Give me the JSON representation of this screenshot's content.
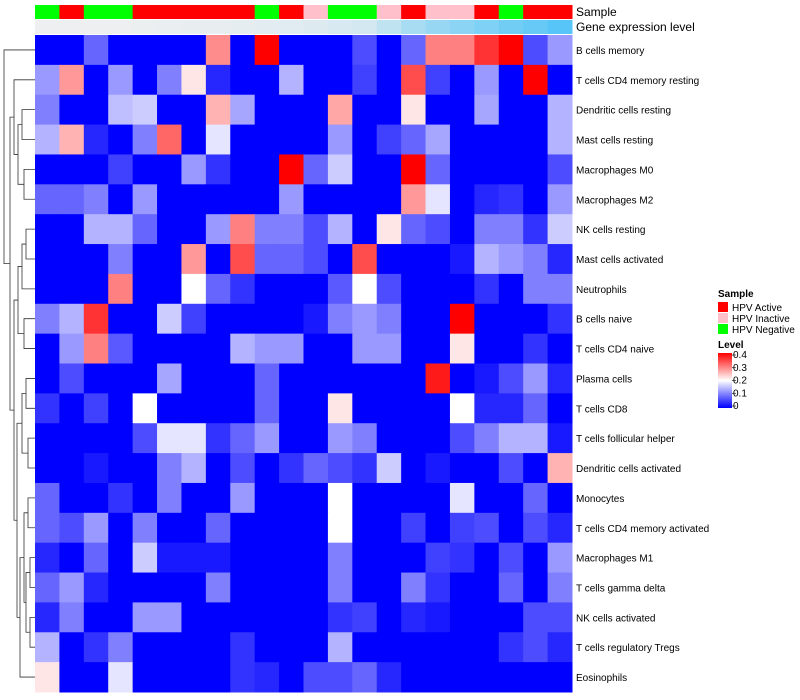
{
  "chart_data": {
    "type": "heatmap",
    "annotation_labels": [
      "Sample",
      "Gene expression level"
    ],
    "sample_groups": [
      "negative",
      "active",
      "negative",
      "negative",
      "active",
      "active",
      "active",
      "active",
      "active",
      "negative",
      "active",
      "inactive",
      "negative",
      "negative",
      "inactive",
      "active",
      "inactive",
      "inactive",
      "active",
      "negative",
      "active",
      "active"
    ],
    "expression_annotation": [
      0.02,
      0.02,
      0.02,
      0.02,
      0.03,
      0.04,
      0.05,
      0.05,
      0.06,
      0.08,
      0.1,
      0.12,
      0.15,
      0.18,
      0.3,
      0.45,
      0.55,
      0.62,
      0.7,
      0.78,
      0.85,
      0.95
    ],
    "rows": [
      "B cells memory",
      "T cells CD4 memory resting",
      "Dendritic cells resting",
      "Mast cells resting",
      "Macrophages M0",
      "Macrophages M2",
      "NK cells resting",
      "Mast cells activated",
      "Neutrophils",
      "B cells naive",
      "T cells CD4 naive",
      "Plasma cells",
      "T cells CD8",
      "T cells follicular helper",
      "Dendritic cells activated",
      "Monocytes",
      "T cells CD4 memory activated",
      "Macrophages M1",
      "T cells gamma delta",
      "NK cells activated",
      "T cells regulatory  Tregs",
      "Eosinophils"
    ],
    "values": [
      [
        0.0,
        0.0,
        0.08,
        0.0,
        0.0,
        0.0,
        0.0,
        0.29,
        0.0,
        0.4,
        0.0,
        0.0,
        0.0,
        0.06,
        0.0,
        0.08,
        0.3,
        0.3,
        0.36,
        0.4,
        0.06,
        0.12
      ],
      [
        0.12,
        0.28,
        0.0,
        0.12,
        0.0,
        0.1,
        0.22,
        0.03,
        0.0,
        0.0,
        0.14,
        0.0,
        0.0,
        0.05,
        0.0,
        0.34,
        0.05,
        0.0,
        0.12,
        0.0,
        0.4,
        0.0
      ],
      [
        0.1,
        0.0,
        0.0,
        0.15,
        0.16,
        0.0,
        0.0,
        0.26,
        0.13,
        0.0,
        0.0,
        0.0,
        0.27,
        0.0,
        0.0,
        0.22,
        0.0,
        0.0,
        0.13,
        0.0,
        0.0,
        0.14
      ],
      [
        0.14,
        0.26,
        0.03,
        0.0,
        0.1,
        0.32,
        0.0,
        0.18,
        0.0,
        0.0,
        0.0,
        0.0,
        0.12,
        0.0,
        0.05,
        0.08,
        0.13,
        0.0,
        0.0,
        0.0,
        0.0,
        0.14
      ],
      [
        0.0,
        0.0,
        0.0,
        0.05,
        0.0,
        0.0,
        0.12,
        0.04,
        0.0,
        0.0,
        0.4,
        0.08,
        0.16,
        0.0,
        0.0,
        0.4,
        0.08,
        0.0,
        0.0,
        0.0,
        0.0,
        0.06
      ],
      [
        0.08,
        0.08,
        0.1,
        0.0,
        0.12,
        0.0,
        0.0,
        0.0,
        0.0,
        0.0,
        0.12,
        0.0,
        0.0,
        0.0,
        0.0,
        0.28,
        0.18,
        0.0,
        0.03,
        0.04,
        0.0,
        0.12
      ],
      [
        0.0,
        0.0,
        0.14,
        0.14,
        0.08,
        0.0,
        0.0,
        0.12,
        0.3,
        0.1,
        0.1,
        0.06,
        0.14,
        0.0,
        0.22,
        0.08,
        0.06,
        0.0,
        0.1,
        0.1,
        0.04,
        0.16
      ],
      [
        0.0,
        0.0,
        0.0,
        0.1,
        0.0,
        0.0,
        0.28,
        0.0,
        0.34,
        0.08,
        0.08,
        0.06,
        0.0,
        0.34,
        0.0,
        0.0,
        0.0,
        0.02,
        0.14,
        0.12,
        0.1,
        0.03
      ],
      [
        0.0,
        0.0,
        0.0,
        0.3,
        0.0,
        0.0,
        0.2,
        0.08,
        0.04,
        0.0,
        0.0,
        0.0,
        0.07,
        0.2,
        0.06,
        0.0,
        0.0,
        0.0,
        0.04,
        0.0,
        0.1,
        0.1
      ],
      [
        0.1,
        0.14,
        0.36,
        0.0,
        0.0,
        0.16,
        0.05,
        0.0,
        0.0,
        0.0,
        0.0,
        0.02,
        0.1,
        0.12,
        0.1,
        0.0,
        0.0,
        0.4,
        0.0,
        0.0,
        0.0,
        0.04
      ],
      [
        0.0,
        0.12,
        0.3,
        0.07,
        0.0,
        0.0,
        0.0,
        0.0,
        0.14,
        0.12,
        0.12,
        0.0,
        0.0,
        0.12,
        0.12,
        0.0,
        0.0,
        0.22,
        0.0,
        0.0,
        0.04,
        0.0
      ],
      [
        0.0,
        0.06,
        0.0,
        0.0,
        0.0,
        0.13,
        0.0,
        0.0,
        0.0,
        0.08,
        0.0,
        0.0,
        0.0,
        0.0,
        0.0,
        0.0,
        0.38,
        0.0,
        0.02,
        0.06,
        0.12,
        0.03
      ],
      [
        0.04,
        0.0,
        0.05,
        0.0,
        0.2,
        0.0,
        0.0,
        0.0,
        0.0,
        0.08,
        0.0,
        0.0,
        0.22,
        0.0,
        0.0,
        0.0,
        0.0,
        0.2,
        0.03,
        0.03,
        0.08,
        0.0
      ],
      [
        0.0,
        0.0,
        0.0,
        0.0,
        0.06,
        0.18,
        0.18,
        0.04,
        0.08,
        0.12,
        0.0,
        0.0,
        0.12,
        0.1,
        0.0,
        0.0,
        0.0,
        0.06,
        0.1,
        0.14,
        0.14,
        0.02
      ],
      [
        0.0,
        0.0,
        0.02,
        0.0,
        0.0,
        0.1,
        0.14,
        0.0,
        0.06,
        0.0,
        0.04,
        0.08,
        0.06,
        0.04,
        0.16,
        0.0,
        0.02,
        0.0,
        0.0,
        0.06,
        0.0,
        0.26
      ],
      [
        0.08,
        0.0,
        0.0,
        0.04,
        0.0,
        0.1,
        0.0,
        0.0,
        0.12,
        0.0,
        0.0,
        0.0,
        0.2,
        0.0,
        0.0,
        0.0,
        0.0,
        0.18,
        0.0,
        0.0,
        0.08,
        0.0
      ],
      [
        0.08,
        0.06,
        0.12,
        0.0,
        0.1,
        0.0,
        0.0,
        0.08,
        0.0,
        0.0,
        0.0,
        0.0,
        0.2,
        0.0,
        0.0,
        0.05,
        0.0,
        0.05,
        0.06,
        0.0,
        0.06,
        0.03
      ],
      [
        0.03,
        0.0,
        0.08,
        0.0,
        0.16,
        0.02,
        0.02,
        0.02,
        0.0,
        0.0,
        0.0,
        0.0,
        0.1,
        0.0,
        0.0,
        0.0,
        0.05,
        0.04,
        0.0,
        0.06,
        0.0,
        0.12
      ],
      [
        0.08,
        0.12,
        0.03,
        0.0,
        0.0,
        0.0,
        0.0,
        0.1,
        0.0,
        0.0,
        0.0,
        0.0,
        0.1,
        0.0,
        0.0,
        0.1,
        0.04,
        0.0,
        0.0,
        0.08,
        0.0,
        0.1
      ],
      [
        0.03,
        0.1,
        0.0,
        0.0,
        0.12,
        0.12,
        0.0,
        0.0,
        0.0,
        0.0,
        0.0,
        0.0,
        0.04,
        0.05,
        0.0,
        0.03,
        0.02,
        0.0,
        0.0,
        0.0,
        0.06,
        0.06
      ],
      [
        0.14,
        0.0,
        0.04,
        0.1,
        0.0,
        0.0,
        0.0,
        0.0,
        0.04,
        0.0,
        0.0,
        0.0,
        0.14,
        0.0,
        0.0,
        0.0,
        0.0,
        0.0,
        0.0,
        0.04,
        0.06,
        0.03
      ],
      [
        0.22,
        0.0,
        0.0,
        0.18,
        0.0,
        0.0,
        0.0,
        0.0,
        0.04,
        0.03,
        0.0,
        0.06,
        0.06,
        0.08,
        0.03,
        0.0,
        0.0,
        0.0,
        0.0,
        0.0,
        0.0,
        0.0
      ]
    ],
    "legend": {
      "sample_title": "Sample",
      "entries": [
        {
          "key": "active",
          "label": "HPV Active",
          "color": "#ff0000"
        },
        {
          "key": "inactive",
          "label": "HPV Inactive",
          "color": "#ffc0cb"
        },
        {
          "key": "negative",
          "label": "HPV Negative",
          "color": "#00ff00"
        }
      ],
      "level_title": "Level",
      "level_ticks": [
        "0.4",
        "0.3",
        "0.2",
        "0.1",
        "0"
      ],
      "level_range": [
        0,
        0.4
      ]
    },
    "colors": {
      "low": "#0000ff",
      "mid": "#ffffff",
      "high": "#ff0000",
      "annot_low": "#f0f0f0",
      "annot_high": "#4fc3f7"
    }
  }
}
